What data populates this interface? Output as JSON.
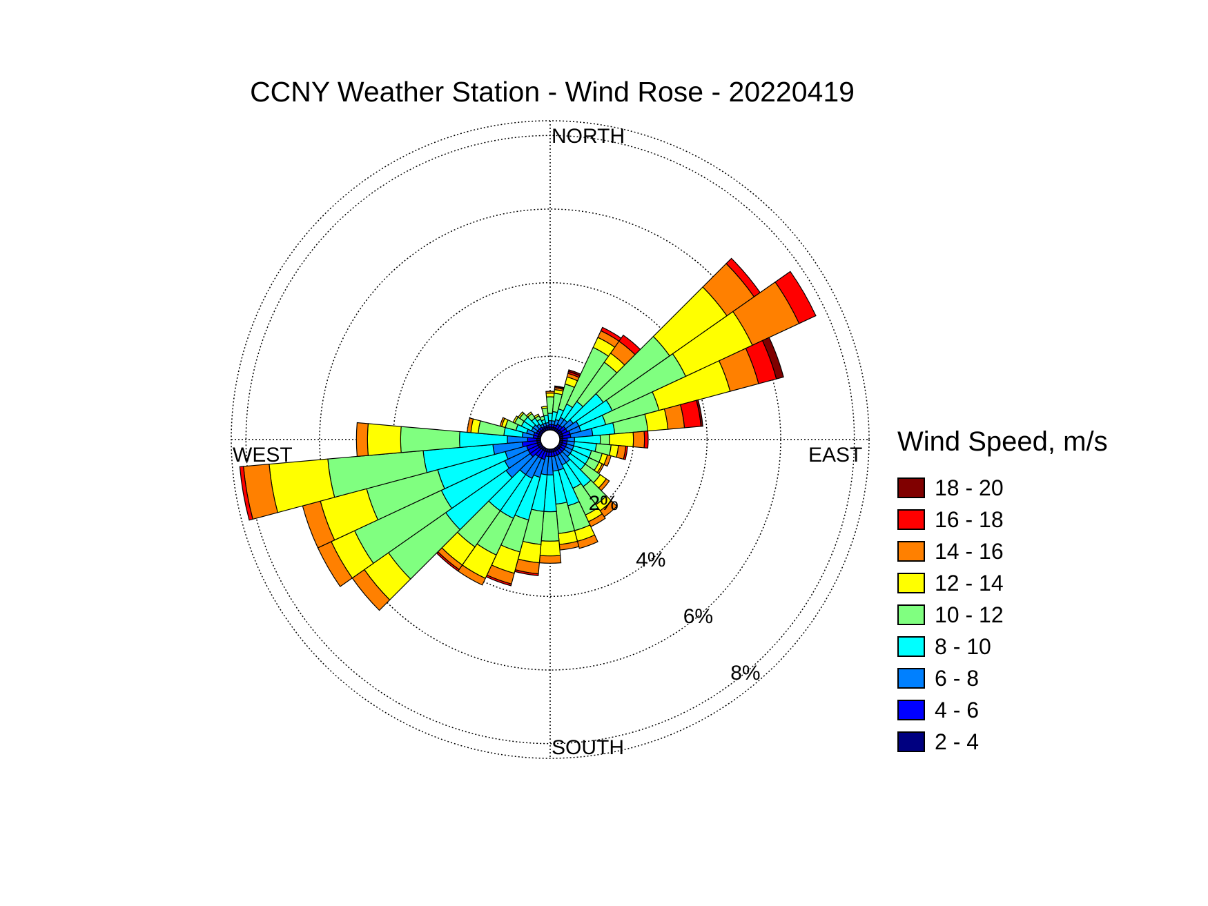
{
  "chart_data": {
    "type": "wind-rose",
    "title": "CCNY Weather Station - Wind Rose - 20220419",
    "direction_labels": {
      "north": "NORTH",
      "east": "EAST",
      "south": "SOUTH",
      "west": "WEST"
    },
    "frequency_unit": "%",
    "rings": [
      {
        "value": 2,
        "label": "2%"
      },
      {
        "value": 4,
        "label": "4%"
      },
      {
        "value": 6,
        "label": "6%"
      },
      {
        "value": 8,
        "label": "8%"
      }
    ],
    "radial_max_percent": 8.4,
    "calm_circle": true,
    "legend": {
      "title": "Wind Speed, m/s",
      "position": "right",
      "bins": [
        {
          "label": "18 - 20",
          "color": "#800000"
        },
        {
          "label": "16 - 18",
          "color": "#ff0000"
        },
        {
          "label": "14 - 16",
          "color": "#ff8000"
        },
        {
          "label": "12 - 14",
          "color": "#ffff00"
        },
        {
          "label": "10 - 12",
          "color": "#80ff80"
        },
        {
          "label": "8 - 10",
          "color": "#00ffff"
        },
        {
          "label": "6 - 8",
          "color": "#0080ff"
        },
        {
          "label": "4 - 6",
          "color": "#0000ff"
        },
        {
          "label": "2 - 4",
          "color": "#000080"
        }
      ]
    },
    "bin_order_inner_to_outer": [
      "2 - 4",
      "4 - 6",
      "6 - 8",
      "8 - 10",
      "10 - 12",
      "12 - 14",
      "14 - 16",
      "16 - 18",
      "18 - 20"
    ],
    "sector_width_deg": 10,
    "sectors": [
      {
        "direction_deg": 0,
        "cumulative": [
          0.08,
          0.15,
          0.25,
          0.45,
          0.9,
          1.0,
          1.05,
          1.05,
          1.05
        ]
      },
      {
        "direction_deg": 10,
        "cumulative": [
          0.08,
          0.15,
          0.25,
          0.5,
          1.0,
          1.1,
          1.15,
          1.18,
          1.2
        ]
      },
      {
        "direction_deg": 20,
        "cumulative": [
          0.08,
          0.15,
          0.3,
          0.6,
          1.3,
          1.5,
          1.6,
          1.65,
          1.7
        ]
      },
      {
        "direction_deg": 30,
        "cumulative": [
          0.08,
          0.2,
          0.4,
          0.8,
          2.5,
          2.8,
          3.0,
          3.1,
          3.1
        ]
      },
      {
        "direction_deg": 40,
        "cumulative": [
          0.08,
          0.2,
          0.4,
          1.0,
          2.3,
          2.6,
          3.0,
          3.2,
          3.2
        ]
      },
      {
        "direction_deg": 50,
        "cumulative": [
          0.1,
          0.25,
          0.5,
          1.5,
          3.7,
          5.6,
          6.5,
          6.7,
          6.7
        ]
      },
      {
        "direction_deg": 60,
        "cumulative": [
          0.1,
          0.25,
          0.6,
          1.6,
          3.8,
          5.8,
          7.2,
          7.7,
          7.7
        ]
      },
      {
        "direction_deg": 70,
        "cumulative": [
          0.1,
          0.3,
          0.6,
          1.3,
          2.8,
          4.8,
          5.6,
          6.1,
          6.3
        ]
      },
      {
        "direction_deg": 80,
        "cumulative": [
          0.08,
          0.3,
          0.9,
          1.5,
          2.4,
          2.95,
          3.4,
          3.85,
          3.9
        ]
      },
      {
        "direction_deg": 90,
        "cumulative": [
          0.08,
          0.2,
          0.4,
          1.1,
          1.35,
          2.0,
          2.3,
          2.4,
          2.4
        ]
      },
      {
        "direction_deg": 100,
        "cumulative": [
          0.08,
          0.2,
          0.4,
          1.0,
          1.4,
          1.6,
          1.8,
          1.85,
          1.85
        ]
      },
      {
        "direction_deg": 110,
        "cumulative": [
          0.08,
          0.2,
          0.4,
          0.9,
          1.2,
          1.35,
          1.45,
          1.45,
          1.45
        ]
      },
      {
        "direction_deg": 120,
        "cumulative": [
          0.08,
          0.2,
          0.4,
          0.9,
          1.2,
          1.3,
          1.35,
          1.35,
          1.35
        ]
      },
      {
        "direction_deg": 130,
        "cumulative": [
          0.08,
          0.2,
          0.4,
          0.9,
          1.4,
          1.6,
          1.7,
          1.7,
          1.7
        ]
      },
      {
        "direction_deg": 140,
        "cumulative": [
          0.08,
          0.2,
          0.5,
          1.3,
          1.9,
          2.1,
          2.3,
          2.3,
          2.3
        ]
      },
      {
        "direction_deg": 150,
        "cumulative": [
          0.08,
          0.2,
          0.5,
          1.2,
          2.0,
          2.2,
          2.35,
          2.35,
          2.35
        ]
      },
      {
        "direction_deg": 160,
        "cumulative": [
          0.08,
          0.2,
          0.6,
          1.6,
          2.3,
          2.6,
          2.8,
          2.8,
          2.8
        ]
      },
      {
        "direction_deg": 170,
        "cumulative": [
          0.08,
          0.2,
          0.6,
          1.5,
          2.3,
          2.6,
          2.75,
          2.75,
          2.75
        ]
      },
      {
        "direction_deg": 180,
        "cumulative": [
          0.08,
          0.2,
          0.7,
          1.7,
          2.5,
          2.9,
          3.1,
          3.1,
          3.1
        ]
      },
      {
        "direction_deg": 190,
        "cumulative": [
          0.08,
          0.2,
          0.7,
          1.7,
          2.6,
          3.1,
          3.4,
          3.45,
          3.45
        ]
      },
      {
        "direction_deg": 200,
        "cumulative": [
          0.08,
          0.3,
          0.8,
          2.0,
          2.9,
          3.5,
          3.8,
          3.85,
          3.85
        ]
      },
      {
        "direction_deg": 210,
        "cumulative": [
          0.08,
          0.3,
          0.9,
          2.1,
          3.2,
          3.9,
          4.1,
          4.1,
          4.1
        ]
      },
      {
        "direction_deg": 220,
        "cumulative": [
          0.08,
          0.3,
          0.9,
          2.1,
          3.3,
          3.9,
          4.05,
          4.1,
          4.1
        ]
      },
      {
        "direction_deg": 230,
        "cumulative": [
          0.1,
          0.4,
          1.2,
          3.2,
          5.1,
          5.9,
          6.3,
          6.3,
          6.3
        ]
      },
      {
        "direction_deg": 240,
        "cumulative": [
          0.1,
          0.4,
          1.1,
          3.0,
          5.6,
          6.3,
          6.7,
          6.7,
          6.7
        ]
      },
      {
        "direction_deg": 250,
        "cumulative": [
          0.1,
          0.4,
          1.0,
          2.9,
          4.9,
          6.2,
          6.7,
          6.7,
          6.7
        ]
      },
      {
        "direction_deg": 260,
        "cumulative": [
          0.1,
          0.5,
          1.3,
          3.2,
          5.8,
          7.4,
          8.1,
          8.2,
          8.2
        ]
      },
      {
        "direction_deg": 270,
        "cumulative": [
          0.1,
          0.35,
          0.9,
          2.2,
          3.8,
          4.7,
          5.0,
          5.0,
          5.0
        ]
      },
      {
        "direction_deg": 280,
        "cumulative": [
          0.08,
          0.2,
          0.5,
          1.0,
          1.7,
          1.9,
          2.0,
          2.0,
          2.0
        ]
      },
      {
        "direction_deg": 290,
        "cumulative": [
          0.08,
          0.2,
          0.4,
          0.7,
          1.0,
          1.1,
          1.15,
          1.15,
          1.15
        ]
      },
      {
        "direction_deg": 300,
        "cumulative": [
          0.08,
          0.15,
          0.3,
          0.6,
          0.8,
          0.85,
          0.85,
          0.85,
          0.85
        ]
      },
      {
        "direction_deg": 310,
        "cumulative": [
          0.08,
          0.15,
          0.3,
          0.6,
          0.75,
          0.8,
          0.8,
          0.8,
          0.8
        ]
      },
      {
        "direction_deg": 320,
        "cumulative": [
          0.08,
          0.15,
          0.25,
          0.45,
          0.6,
          0.65,
          0.65,
          0.65,
          0.65
        ]
      },
      {
        "direction_deg": 330,
        "cumulative": [
          0.08,
          0.12,
          0.2,
          0.35,
          0.45,
          0.5,
          0.5,
          0.5,
          0.5
        ]
      },
      {
        "direction_deg": 340,
        "cumulative": [
          0.08,
          0.12,
          0.2,
          0.3,
          0.4,
          0.4,
          0.4,
          0.4,
          0.4
        ]
      },
      {
        "direction_deg": 350,
        "cumulative": [
          0.08,
          0.12,
          0.2,
          0.4,
          0.6,
          0.65,
          0.65,
          0.65,
          0.65
        ]
      }
    ]
  }
}
